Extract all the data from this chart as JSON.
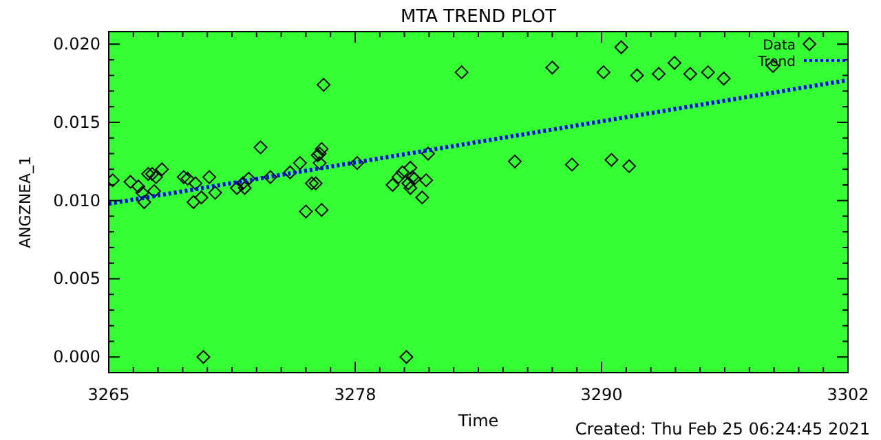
{
  "chart_data": {
    "type": "scatter",
    "title": "MTA TREND PLOT",
    "xlabel": "Time",
    "ylabel": "ANGZNEA_1",
    "annotations": [
      "Created: Thu Feb 25 06:24:45 2021"
    ],
    "xlim": [
      3265,
      3302.5
    ],
    "xticks": [
      {
        "value": 3265,
        "label": "3265"
      },
      {
        "value": 3277.5,
        "label": "3278"
      },
      {
        "value": 3290,
        "label": "3290"
      },
      {
        "value": 3302.5,
        "label": "3302"
      }
    ],
    "ylim": [
      -0.001,
      0.0208
    ],
    "yticks": [
      {
        "value": 0,
        "label": "0.000"
      },
      {
        "value": 0.005,
        "label": "0.005"
      },
      {
        "value": 0.01,
        "label": "0.010"
      },
      {
        "value": 0.015,
        "label": "0.015"
      },
      {
        "value": 0.02,
        "label": "0.020"
      }
    ],
    "grid": false,
    "legend": "top right",
    "series": [
      {
        "name": "Data",
        "marker": "diamond",
        "color": "#000000",
        "x": [
          3265.2,
          3266.1,
          3266.5,
          3266.7,
          3266.8,
          3267.0,
          3267.2,
          3267.4,
          3267.7,
          3267.3,
          3268.8,
          3269.0,
          3269.4,
          3269.3,
          3269.7,
          3269.8,
          3270.1,
          3270.4,
          3271.5,
          3271.8,
          3271.9,
          3272.1,
          3272.7,
          3273.2,
          3274.2,
          3274.7,
          3275.0,
          3275.3,
          3275.5,
          3275.6,
          3275.7,
          3275.8,
          3275.8,
          3275.9,
          3275.7,
          3277.6,
          3279.4,
          3279.7,
          3279.9,
          3280.2,
          3280.3,
          3280.4,
          3280.5,
          3280.3,
          3280.1,
          3280.9,
          3281.1,
          3281.2,
          3282.9,
          3285.6,
          3287.5,
          3288.5,
          3290.1,
          3290.5,
          3291.0,
          3291.4,
          3291.8,
          3292.9,
          3293.7,
          3294.5,
          3295.4,
          3296.2,
          3298.7
        ],
        "values": [
          0.0113,
          0.0112,
          0.0109,
          0.0105,
          0.0099,
          0.0117,
          0.0117,
          0.0115,
          0.012,
          0.0106,
          0.0115,
          0.0114,
          0.0111,
          0.0099,
          0.0102,
          0.0,
          0.0115,
          0.0105,
          0.0108,
          0.0111,
          0.0108,
          0.0114,
          0.0134,
          0.0115,
          0.0118,
          0.0124,
          0.0093,
          0.0111,
          0.0111,
          0.0129,
          0.013,
          0.0133,
          0.0094,
          0.0174,
          0.0124,
          0.0124,
          0.011,
          0.0115,
          0.0118,
          0.0111,
          0.0121,
          0.0115,
          0.0114,
          0.0108,
          0.0,
          0.0102,
          0.0113,
          0.013,
          0.0182,
          0.0125,
          0.0185,
          0.0123,
          0.0182,
          0.0126,
          0.0198,
          0.0122,
          0.018,
          0.0181,
          0.0188,
          0.0181,
          0.0182,
          0.0178,
          0.0186
        ]
      },
      {
        "name": "Trend",
        "type": "line",
        "marker": "none",
        "line_style": "dotted",
        "color": "#0000ff",
        "x": [
          3265,
          3302.5
        ],
        "values": [
          0.0098,
          0.0177
        ]
      }
    ]
  }
}
